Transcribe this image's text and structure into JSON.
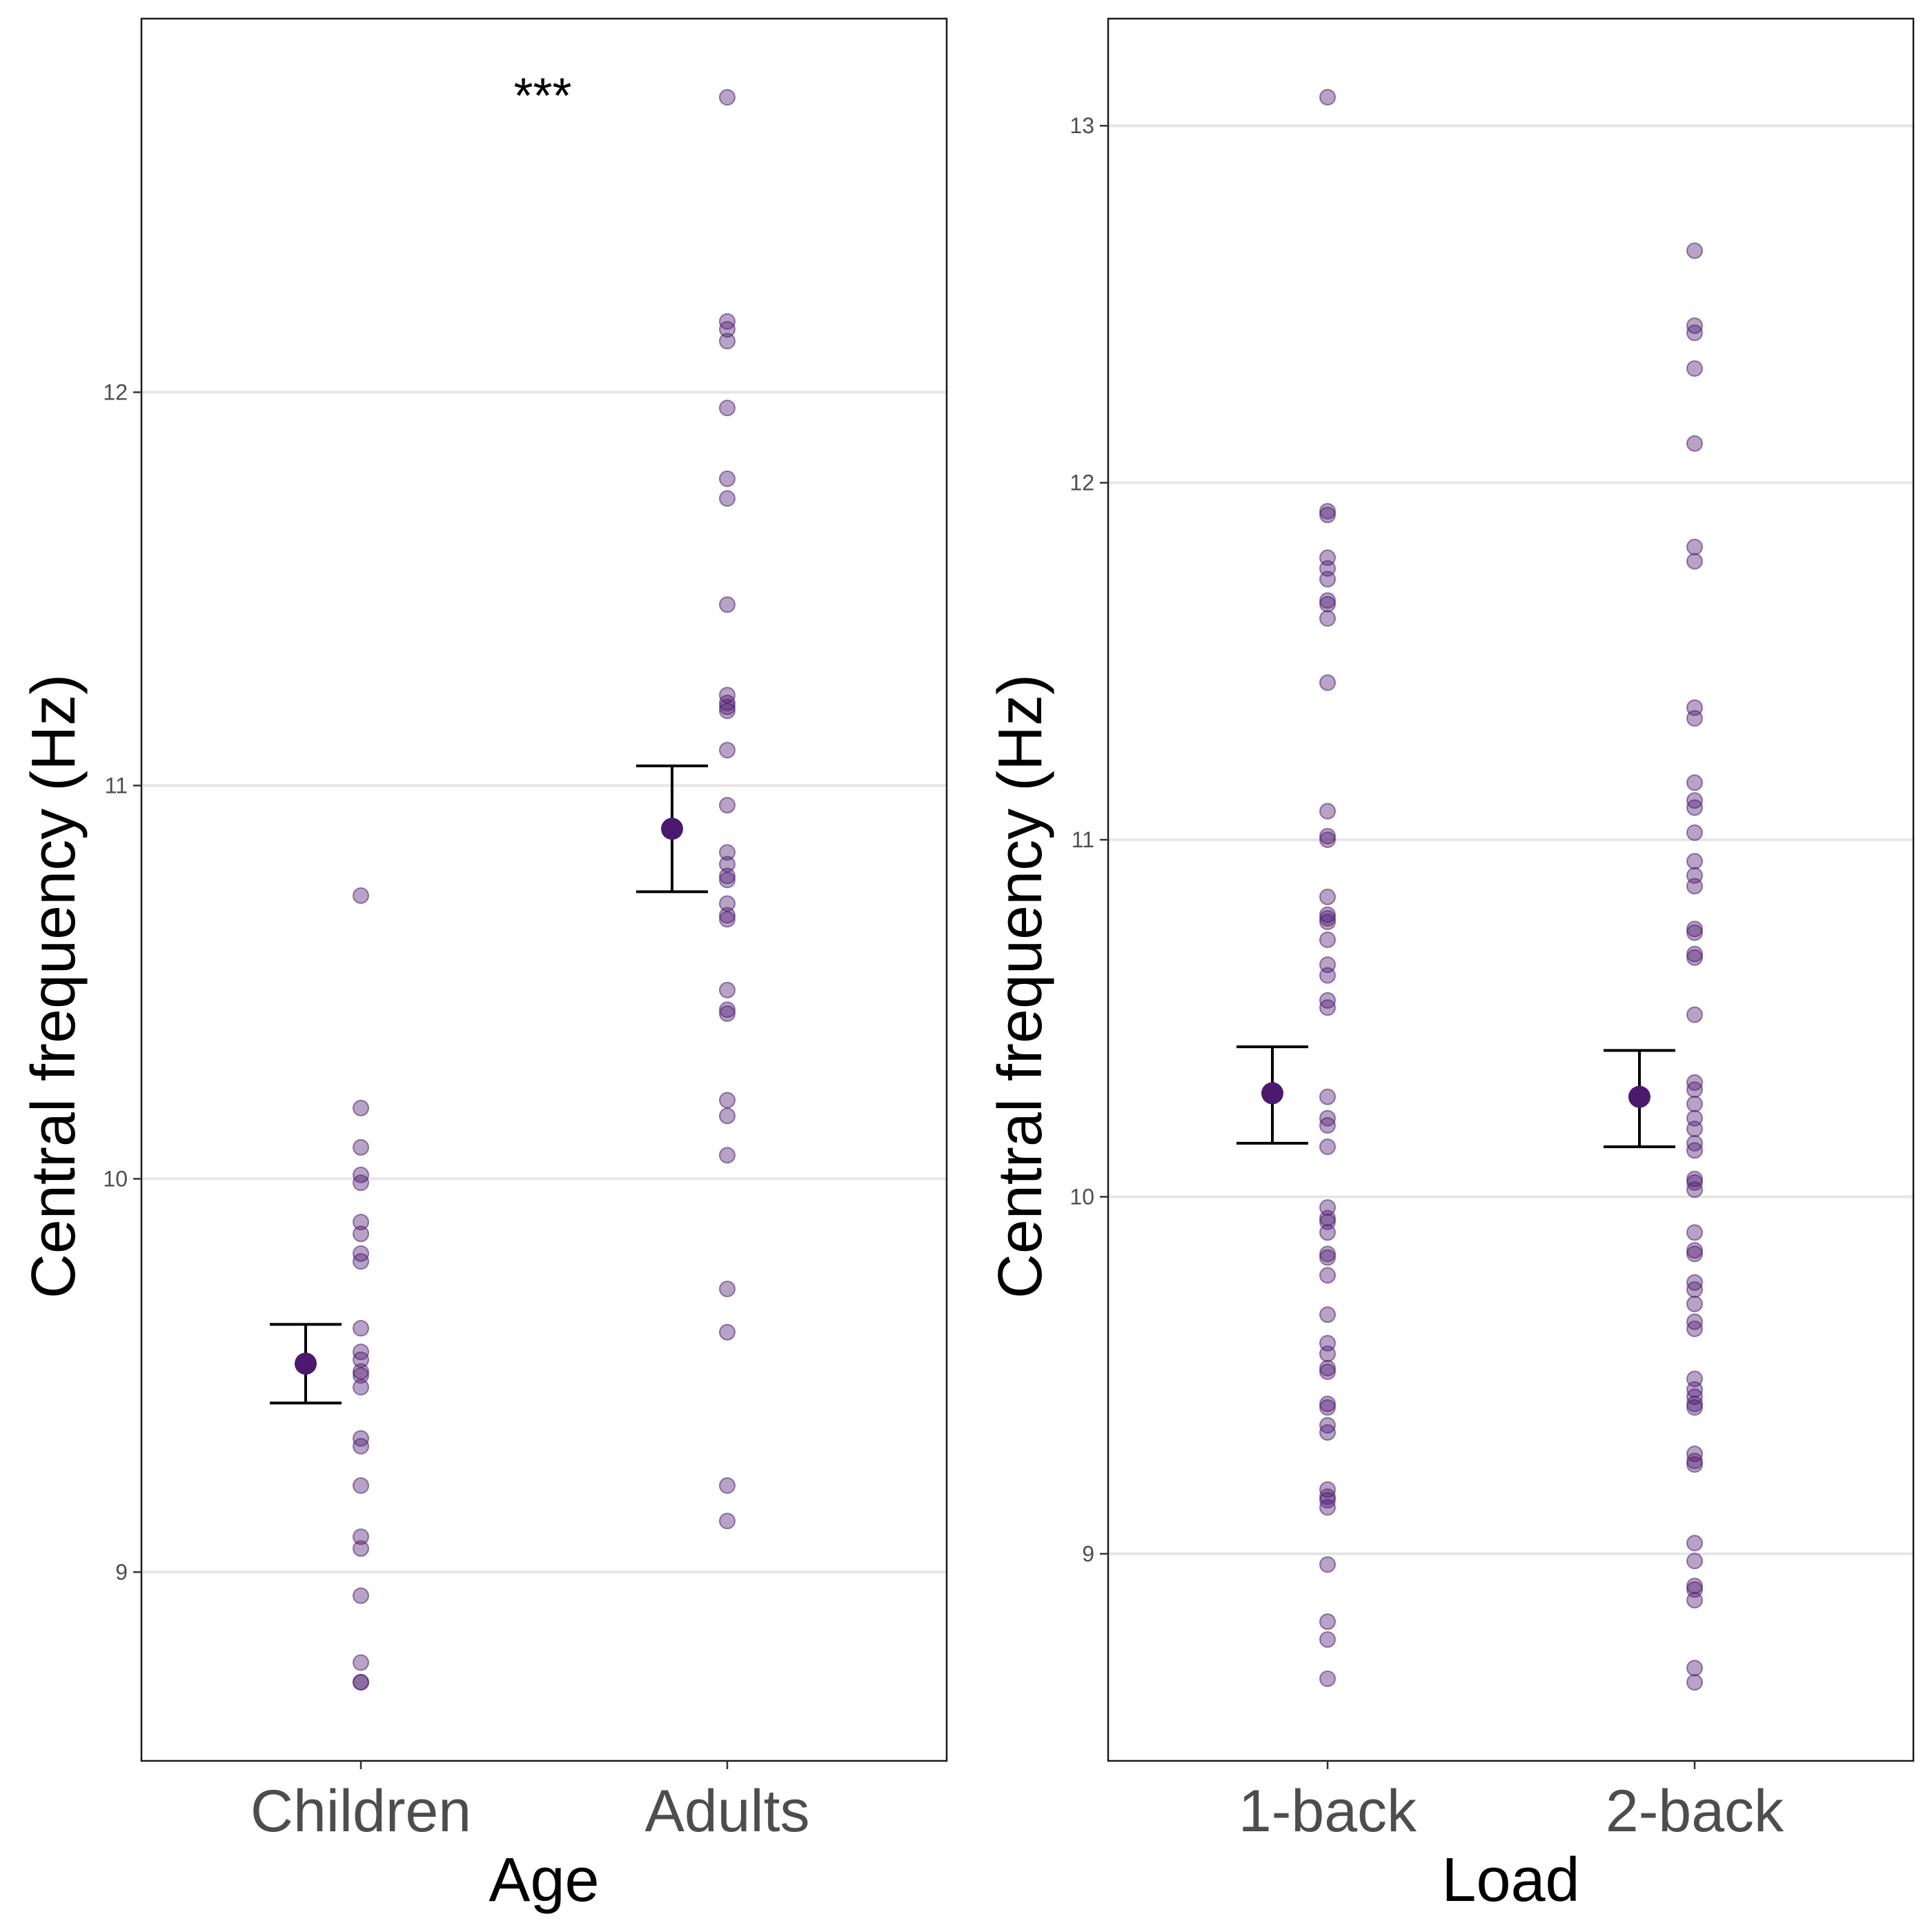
{
  "colors": {
    "point": "#4b1a6e",
    "mean": "#4b1a6e",
    "error_bar": "#000000",
    "grid": "#e6e6e6"
  },
  "chart_data": [
    {
      "type": "scatter",
      "xlabel": "Age",
      "ylabel": "Central frequency (Hz)",
      "categories": [
        "Children",
        "Adults"
      ],
      "yticks": [
        9,
        10,
        11,
        12
      ],
      "ylim": [
        8.52,
        12.95
      ],
      "grid": "horizontal major only",
      "annotation": {
        "text": "***",
        "x_between": [
          "Children",
          "Adults"
        ],
        "y": 12.76
      },
      "means": [
        {
          "category": "Children",
          "mean": 9.53,
          "lower": 9.43,
          "upper": 9.63
        },
        {
          "category": "Adults",
          "mean": 10.89,
          "lower": 10.73,
          "upper": 11.05
        }
      ],
      "series": [
        {
          "category": "Children",
          "values": [
            10.72,
            10.18,
            10.08,
            10.01,
            9.99,
            9.89,
            9.86,
            9.81,
            9.79,
            9.62,
            9.56,
            9.54,
            9.51,
            9.5,
            9.47,
            9.34,
            9.32,
            9.22,
            9.09,
            9.06,
            8.94,
            8.77,
            8.72,
            8.72
          ]
        },
        {
          "category": "Adults",
          "values": [
            12.75,
            12.18,
            12.16,
            12.13,
            11.96,
            11.78,
            11.73,
            11.46,
            11.23,
            11.21,
            11.2,
            11.19,
            11.09,
            10.95,
            10.83,
            10.8,
            10.77,
            10.76,
            10.7,
            10.67,
            10.66,
            10.48,
            10.43,
            10.42,
            10.2,
            10.16,
            10.06,
            9.72,
            9.61,
            9.22,
            9.13
          ]
        }
      ]
    },
    {
      "type": "scatter",
      "xlabel": "Load",
      "ylabel": "Central frequency (Hz)",
      "categories": [
        "1-back",
        "2-back"
      ],
      "yticks": [
        9,
        10,
        11,
        12,
        13
      ],
      "ylim": [
        8.42,
        13.3
      ],
      "grid": "horizontal major only",
      "means": [
        {
          "category": "1-back",
          "mean": 10.29,
          "lower": 10.15,
          "upper": 10.42
        },
        {
          "category": "2-back",
          "mean": 10.28,
          "lower": 10.14,
          "upper": 10.41
        }
      ],
      "series": [
        {
          "category": "1-back",
          "values": [
            13.08,
            11.92,
            11.91,
            11.79,
            11.76,
            11.73,
            11.67,
            11.66,
            11.62,
            11.44,
            11.08,
            11.01,
            11.0,
            10.84,
            10.79,
            10.78,
            10.77,
            10.72,
            10.65,
            10.62,
            10.55,
            10.53,
            10.28,
            10.22,
            10.2,
            10.14,
            9.97,
            9.94,
            9.93,
            9.9,
            9.84,
            9.83,
            9.78,
            9.67,
            9.59,
            9.56,
            9.52,
            9.51,
            9.42,
            9.41,
            9.36,
            9.34,
            9.18,
            9.16,
            9.15,
            9.13,
            8.97,
            8.81,
            8.76,
            8.65
          ]
        },
        {
          "category": "2-back",
          "values": [
            12.65,
            12.44,
            12.42,
            12.32,
            12.11,
            11.82,
            11.78,
            11.37,
            11.34,
            11.16,
            11.11,
            11.09,
            11.02,
            10.94,
            10.9,
            10.87,
            10.75,
            10.74,
            10.68,
            10.67,
            10.51,
            10.32,
            10.3,
            10.26,
            10.22,
            10.19,
            10.15,
            10.13,
            10.05,
            10.04,
            10.02,
            9.9,
            9.85,
            9.84,
            9.76,
            9.74,
            9.7,
            9.65,
            9.63,
            9.49,
            9.46,
            9.44,
            9.42,
            9.41,
            9.28,
            9.26,
            9.25,
            9.03,
            8.98,
            8.91,
            8.9,
            8.87,
            8.68,
            8.64
          ]
        }
      ]
    }
  ]
}
